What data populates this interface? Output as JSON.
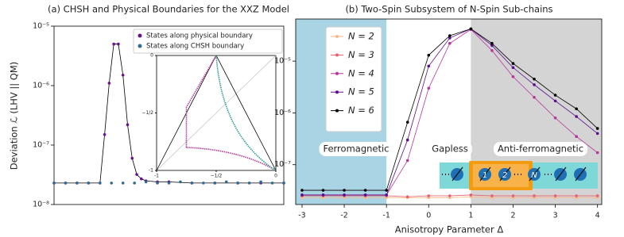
{
  "chart_data": [
    {
      "type": "scatter",
      "title": "(a) CHSH and Physical Boundaries for the XXZ Model",
      "y_label": "Deviation ℒ (LHV || QM)",
      "log_y": true,
      "xlim": [
        0,
        1
      ],
      "ylim": [
        1e-08,
        1e-05
      ],
      "yticks": [
        {
          "value": 1e-08,
          "label": "10⁻⁸"
        },
        {
          "value": 1e-07,
          "label": "10⁻⁷"
        },
        {
          "value": 1e-06,
          "label": "10⁻⁶"
        },
        {
          "value": 1e-05,
          "label": "10⁻⁵"
        }
      ],
      "series": [
        {
          "name": "States along physical boundary",
          "color": "#6a0f8e",
          "line_color": "#000000",
          "x": [
            0,
            0.05,
            0.1,
            0.15,
            0.2,
            0.22,
            0.24,
            0.26,
            0.28,
            0.3,
            0.32,
            0.34,
            0.36,
            0.38,
            0.4,
            0.45,
            0.5,
            0.6,
            0.7,
            0.8,
            0.9,
            1.0
          ],
          "values": [
            2.3e-08,
            2.3e-08,
            2.3e-08,
            2.3e-08,
            2.3e-08,
            1.5e-07,
            1.1e-06,
            5e-06,
            5e-06,
            1.5e-06,
            2.2e-07,
            6e-08,
            3.2e-08,
            2.7e-08,
            2.5e-08,
            2.4e-08,
            2.4e-08,
            2.3e-08,
            2.3e-08,
            2.3e-08,
            2.3e-08,
            2.3e-08
          ]
        },
        {
          "name": "States along CHSH boundary",
          "color": "#2f6b8e",
          "x": [
            0,
            0.05,
            0.1,
            0.15,
            0.2,
            0.25,
            0.3,
            0.35,
            0.4,
            0.45,
            0.5,
            0.55,
            0.6,
            0.65,
            0.7,
            0.75,
            0.8,
            0.85,
            0.9,
            0.95,
            1.0
          ],
          "values": [
            2.3e-08,
            2.3e-08,
            2.3e-08,
            2.3e-08,
            2.3e-08,
            2.3e-08,
            2.3e-08,
            2.3e-08,
            2.4e-08,
            2.3e-08,
            2.3e-08,
            2.4e-08,
            2.3e-08,
            2.3e-08,
            2.3e-08,
            2.4e-08,
            2.3e-08,
            2.3e-08,
            2.4e-08,
            2.3e-08,
            2.3e-08
          ]
        }
      ],
      "legend": "upper right",
      "inset": {
        "xticks": [
          -1,
          {
            "value": -0.5,
            "label": "−1/2"
          },
          0
        ],
        "yticks": [
          -1,
          {
            "value": -0.5,
            "label": "−1/2"
          },
          0
        ]
      }
    },
    {
      "type": "line",
      "title": "(b) Two-Spin Subsystem of N-Spin Sub-chains",
      "x_label": "Anisotropy Parameter Δ",
      "log_y": true,
      "lines": true,
      "xlim": [
        -3.15,
        4.1
      ],
      "ylim": [
        1.7e-08,
        6.5e-05
      ],
      "xticks": [
        -3,
        -2,
        -1,
        0,
        1,
        2,
        3,
        4
      ],
      "yticks": [
        {
          "value": 1e-07,
          "label": "10⁻⁷"
        },
        {
          "value": 1e-06,
          "label": "10⁻⁶"
        },
        {
          "value": 1e-05,
          "label": "10⁻⁵"
        }
      ],
      "x": [
        -3,
        -2.5,
        -2,
        -1.5,
        -1,
        -0.5,
        0,
        0.5,
        1,
        1.5,
        2,
        2.5,
        3,
        3.5,
        4
      ],
      "series": [
        {
          "name": "N = 2",
          "color": "#fdb98a",
          "values": [
            2.3e-08,
            2.3e-08,
            2.3e-08,
            2.3e-08,
            2.3e-08,
            2.3e-08,
            2.3e-08,
            2.3e-08,
            2.4e-08,
            2.3e-08,
            2.3e-08,
            2.3e-08,
            2.3e-08,
            2.3e-08,
            2.3e-08
          ]
        },
        {
          "name": "N = 3",
          "color": "#e8606a",
          "values": [
            2.5e-08,
            2.5e-08,
            2.5e-08,
            2.5e-08,
            2.5e-08,
            2.4e-08,
            2.5e-08,
            2.5e-08,
            2.6e-08,
            2.5e-08,
            2.5e-08,
            2.5e-08,
            2.5e-08,
            2.5e-08,
            2.5e-08
          ]
        },
        {
          "name": "N = 4",
          "color": "#b5359b",
          "values": [
            2.6e-08,
            2.6e-08,
            2.6e-08,
            2.6e-08,
            2.6e-08,
            1.2e-07,
            3e-06,
            2.2e-05,
            4.1e-05,
            1.6e-05,
            5e-06,
            2e-06,
            8e-07,
            3.5e-07,
            1.7e-07
          ]
        },
        {
          "name": "N = 5",
          "color": "#5b0c8e",
          "values": [
            2.6e-08,
            2.6e-08,
            2.6e-08,
            2.6e-08,
            2.6e-08,
            3e-07,
            8e-06,
            2.8e-05,
            4.2e-05,
            2e-05,
            7.5e-06,
            3.5e-06,
            1.7e-06,
            8.5e-07,
            4e-07
          ]
        },
        {
          "name": "N = 6",
          "color": "#000000",
          "values": [
            3.2e-08,
            3.2e-08,
            3.2e-08,
            3.2e-08,
            3.2e-08,
            6.6e-07,
            1.3e-05,
            3.1e-05,
            4.2e-05,
            2.2e-05,
            9e-06,
            4.5e-06,
            2.2e-06,
            1.2e-06,
            5e-07
          ]
        }
      ],
      "legend": "upper left",
      "regions": [
        {
          "label": "Ferromagnetic",
          "range": [
            -3.15,
            -1
          ],
          "color": "#a9d4e4"
        },
        {
          "label": "Gapless"
        },
        {
          "label": "Anti-ferromagnetic",
          "range": [
            1,
            4.1
          ],
          "color": "#d4d4d4"
        }
      ],
      "illustration_labels": [
        "1",
        "2",
        "N"
      ]
    }
  ]
}
